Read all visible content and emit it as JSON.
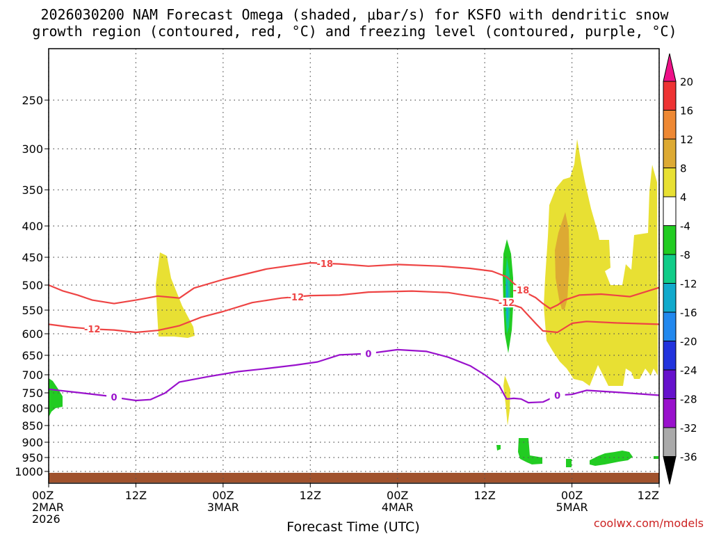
{
  "chart_data": {
    "type": "time-height section",
    "title_line1": "2026030200 NAM Forecast Omega (shaded, μbar/s) for KSFO with dendritic snow",
    "title_line2": "growth region (contoured, red, °C) and freezing level (contoured, purple, °C)",
    "xlabel": "Forecast Time (UTC)",
    "credit": "coolwx.com/models",
    "x_hours": [
      0,
      84
    ],
    "x_ticks": [
      {
        "h": 0,
        "l1": "00Z",
        "l2": "2MAR",
        "l3": "2026"
      },
      {
        "h": 12,
        "l1": "12Z"
      },
      {
        "h": 24,
        "l1": "00Z",
        "l2": "3MAR"
      },
      {
        "h": 36,
        "l1": "12Z"
      },
      {
        "h": 48,
        "l1": "00Z",
        "l2": "4MAR"
      },
      {
        "h": 60,
        "l1": "12Z"
      },
      {
        "h": 72,
        "l1": "00Z",
        "l2": "5MAR"
      },
      {
        "h": 84,
        "l1": "12Z"
      }
    ],
    "y_axis": "pressure (hPa), reversed",
    "y_ticks": [
      250,
      300,
      350,
      400,
      450,
      500,
      550,
      600,
      650,
      700,
      750,
      800,
      850,
      900,
      950,
      1000
    ],
    "grid": true,
    "colorbar": {
      "labels": [
        "20",
        "16",
        "12",
        "8",
        "4",
        "-4",
        "-8",
        "-12",
        "-16",
        "-20",
        "-24",
        "-28",
        "-32",
        "-36"
      ],
      "colors": [
        "#ee1188",
        "#ee3333",
        "#ee8833",
        "#ddaa33",
        "#e8e033",
        "#ffffff",
        "#22cc22",
        "#11cc88",
        "#11aacc",
        "#2288ee",
        "#2233dd",
        "#6611cc",
        "#9911cc",
        "#aaaaaa",
        "#000000"
      ]
    },
    "contours": [
      {
        "label": "-18",
        "color": "#ee4444",
        "points": [
          [
            0,
            500
          ],
          [
            2,
            512
          ],
          [
            4,
            520
          ],
          [
            6,
            530
          ],
          [
            9,
            537
          ],
          [
            12,
            530
          ],
          [
            15,
            522
          ],
          [
            18,
            526
          ],
          [
            20,
            506
          ],
          [
            24,
            490
          ],
          [
            30,
            471
          ],
          [
            36,
            460
          ],
          [
            40,
            462
          ],
          [
            44,
            466
          ],
          [
            48,
            463
          ],
          [
            54,
            466
          ],
          [
            58,
            470
          ],
          [
            61,
            475
          ],
          [
            63,
            485
          ],
          [
            65,
            510
          ],
          [
            67,
            525
          ],
          [
            68,
            537
          ],
          [
            69,
            547
          ],
          [
            70,
            540
          ],
          [
            71,
            530
          ],
          [
            73,
            520
          ],
          [
            76,
            518
          ],
          [
            80,
            523
          ],
          [
            84,
            505
          ]
        ]
      },
      {
        "label": "-12",
        "color": "#ee4444",
        "points": [
          [
            0,
            580
          ],
          [
            3,
            586
          ],
          [
            6,
            590
          ],
          [
            9,
            592
          ],
          [
            12,
            597
          ],
          [
            15,
            593
          ],
          [
            18,
            583
          ],
          [
            21,
            565
          ],
          [
            24,
            553
          ],
          [
            28,
            535
          ],
          [
            32,
            526
          ],
          [
            36,
            521
          ],
          [
            40,
            520
          ],
          [
            44,
            514
          ],
          [
            50,
            512
          ],
          [
            55,
            515
          ],
          [
            58,
            522
          ],
          [
            61,
            528
          ],
          [
            63,
            535
          ],
          [
            65,
            545
          ],
          [
            67,
            578
          ],
          [
            68,
            594
          ],
          [
            70,
            597
          ],
          [
            72,
            578
          ],
          [
            74,
            574
          ],
          [
            78,
            577
          ],
          [
            84,
            580
          ]
        ]
      },
      {
        "label": "0",
        "color": "#9911cc",
        "points": [
          [
            0,
            740
          ],
          [
            4,
            749
          ],
          [
            8,
            760
          ],
          [
            10,
            768
          ],
          [
            12,
            775
          ],
          [
            14,
            772
          ],
          [
            16,
            751
          ],
          [
            18,
            720
          ],
          [
            22,
            705
          ],
          [
            26,
            692
          ],
          [
            30,
            684
          ],
          [
            34,
            675
          ],
          [
            37,
            667
          ],
          [
            40,
            649
          ],
          [
            44,
            646
          ],
          [
            48,
            637
          ],
          [
            52,
            641
          ],
          [
            55,
            655
          ],
          [
            58,
            677
          ],
          [
            60,
            700
          ],
          [
            62,
            730
          ],
          [
            63,
            770
          ],
          [
            64,
            768
          ],
          [
            65,
            770
          ],
          [
            66,
            782
          ],
          [
            68,
            780
          ],
          [
            70,
            758
          ],
          [
            72,
            755
          ],
          [
            74,
            743
          ],
          [
            78,
            748
          ],
          [
            84,
            758
          ]
        ]
      }
    ]
  }
}
